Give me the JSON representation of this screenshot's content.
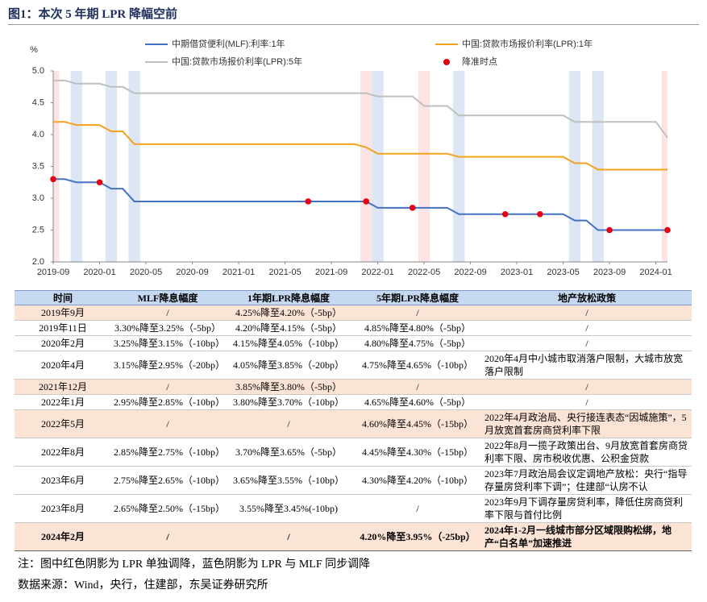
{
  "title": "图1：本次 5 年期 LPR 降幅空前",
  "chart_data": {
    "type": "line",
    "y_label": "%",
    "x": [
      "2019-09",
      "2019-10",
      "2019-11",
      "2019-12",
      "2020-01",
      "2020-02",
      "2020-03",
      "2020-04",
      "2020-05",
      "2020-06",
      "2020-07",
      "2020-08",
      "2020-09",
      "2020-10",
      "2020-11",
      "2020-12",
      "2021-01",
      "2021-02",
      "2021-03",
      "2021-04",
      "2021-05",
      "2021-06",
      "2021-07",
      "2021-08",
      "2021-09",
      "2021-10",
      "2021-11",
      "2021-12",
      "2022-01",
      "2022-02",
      "2022-03",
      "2022-04",
      "2022-05",
      "2022-06",
      "2022-07",
      "2022-08",
      "2022-09",
      "2022-10",
      "2022-11",
      "2022-12",
      "2023-01",
      "2023-02",
      "2023-03",
      "2023-04",
      "2023-05",
      "2023-06",
      "2023-07",
      "2023-08",
      "2023-09",
      "2023-10",
      "2023-11",
      "2023-12",
      "2024-01",
      "2024-02"
    ],
    "series": [
      {
        "name": "中期借贷便利(MLF):利率:1年",
        "color": "#4472c4",
        "values": [
          3.3,
          3.3,
          3.25,
          3.25,
          3.25,
          3.15,
          3.15,
          2.95,
          2.95,
          2.95,
          2.95,
          2.95,
          2.95,
          2.95,
          2.95,
          2.95,
          2.95,
          2.95,
          2.95,
          2.95,
          2.95,
          2.95,
          2.95,
          2.95,
          2.95,
          2.95,
          2.95,
          2.95,
          2.85,
          2.85,
          2.85,
          2.85,
          2.85,
          2.85,
          2.85,
          2.75,
          2.75,
          2.75,
          2.75,
          2.75,
          2.75,
          2.75,
          2.75,
          2.75,
          2.75,
          2.65,
          2.65,
          2.5,
          2.5,
          2.5,
          2.5,
          2.5,
          2.5,
          2.5
        ]
      },
      {
        "name": "中国:贷款市场报价利率(LPR):1年",
        "color": "#f5a31c",
        "values": [
          4.2,
          4.2,
          4.15,
          4.15,
          4.15,
          4.05,
          4.05,
          3.85,
          3.85,
          3.85,
          3.85,
          3.85,
          3.85,
          3.85,
          3.85,
          3.85,
          3.85,
          3.85,
          3.85,
          3.85,
          3.85,
          3.85,
          3.85,
          3.85,
          3.85,
          3.85,
          3.85,
          3.8,
          3.7,
          3.7,
          3.7,
          3.7,
          3.7,
          3.7,
          3.7,
          3.65,
          3.65,
          3.65,
          3.65,
          3.65,
          3.65,
          3.65,
          3.65,
          3.65,
          3.65,
          3.55,
          3.55,
          3.45,
          3.45,
          3.45,
          3.45,
          3.45,
          3.45,
          3.45
        ]
      },
      {
        "name": "中国:贷款市场报价利率(LPR):5年",
        "color": "#bfbfbf",
        "values": [
          4.85,
          4.85,
          4.8,
          4.8,
          4.8,
          4.75,
          4.75,
          4.65,
          4.65,
          4.65,
          4.65,
          4.65,
          4.65,
          4.65,
          4.65,
          4.65,
          4.65,
          4.65,
          4.65,
          4.65,
          4.65,
          4.65,
          4.65,
          4.65,
          4.65,
          4.65,
          4.65,
          4.65,
          4.6,
          4.6,
          4.6,
          4.6,
          4.45,
          4.45,
          4.45,
          4.3,
          4.3,
          4.3,
          4.3,
          4.3,
          4.3,
          4.3,
          4.3,
          4.3,
          4.3,
          4.2,
          4.2,
          4.2,
          4.2,
          4.2,
          4.2,
          4.2,
          4.2,
          3.95
        ]
      }
    ],
    "points": {
      "name": "降准时点",
      "color": "#e60012",
      "x": [
        "2019-09",
        "2020-01",
        "2021-07",
        "2021-12",
        "2022-04",
        "2022-12",
        "2023-03",
        "2023-09",
        "2024-02"
      ],
      "values": [
        3.3,
        3.25,
        2.95,
        2.95,
        2.85,
        2.75,
        2.75,
        2.5,
        2.5
      ]
    },
    "bands": [
      {
        "x": "2019-09",
        "color": "#fce4e4"
      },
      {
        "x": "2019-11",
        "color": "#dce6f4"
      },
      {
        "x": "2020-02",
        "color": "#dce6f4"
      },
      {
        "x": "2020-04",
        "color": "#dce6f4"
      },
      {
        "x": "2021-12",
        "color": "#fce4e4"
      },
      {
        "x": "2022-01",
        "color": "#dce6f4"
      },
      {
        "x": "2022-05",
        "color": "#fce4e4"
      },
      {
        "x": "2022-08",
        "color": "#dce6f4"
      },
      {
        "x": "2023-06",
        "color": "#dce6f4"
      },
      {
        "x": "2023-08",
        "color": "#dce6f4"
      },
      {
        "x": "2024-02",
        "color": "#fce4e4"
      }
    ],
    "xlim": [
      "2019-09",
      "2024-02"
    ],
    "xticks": [
      "2019-09",
      "2020-01",
      "2020-05",
      "2020-09",
      "2021-01",
      "2021-05",
      "2021-09",
      "2022-01",
      "2022-05",
      "2022-09",
      "2023-01",
      "2023-05",
      "2023-09",
      "2024-01"
    ],
    "ylim": [
      2,
      5
    ],
    "yticks": [
      {
        "value": 2,
        "label": "2.0"
      },
      2.5,
      {
        "value": 3,
        "label": "3.0"
      },
      3.5,
      {
        "value": 4,
        "label": "4.0"
      },
      4.5,
      {
        "value": 5,
        "label": "5.0"
      }
    ]
  },
  "table": {
    "header": [
      "时间",
      "MLF降息幅度",
      "1年期LPR降息幅度",
      "5年期LPR降息幅度",
      "地产放松政策"
    ],
    "rows": [
      {
        "highlight": true,
        "cells": [
          "2019年9月",
          "/",
          "4.25%降至4.20%（-5bp）",
          "/",
          "/"
        ]
      },
      {
        "cells": [
          "2019年11日",
          "3.30%降至3.25%（-5bp）",
          "4.20%降至4.15%（-5bp）",
          "4.85%降至4.80%（-5bp）",
          "/"
        ]
      },
      {
        "cells": [
          "2020年2月",
          "3.25%降至3.15%（-10bp）",
          "4.15%降至4.05%（-10bp）",
          "4.80%降至4.75%（-5bp）",
          "/"
        ]
      },
      {
        "cells": [
          "2020年4月",
          "3.15%降至2.95%（-20bp）",
          "4.05%降至3.85%（-20bp）",
          "4.75%降至4.65%（-10bp）",
          "2020年4月中小城市取消落户限制，大城市放宽落户限制"
        ]
      },
      {
        "highlight": true,
        "cells": [
          "2021年12月",
          "/",
          "3.85%降至3.80%（-5bp）",
          "/",
          "/"
        ]
      },
      {
        "cells": [
          "2022年1月",
          "2.95%降至2.85%（-10bp）",
          "3.80%降至3.70%（-10bp）",
          "4.65%降至4.60%（-5bp）",
          "/"
        ]
      },
      {
        "highlight": true,
        "cells": [
          "2022年5月",
          "/",
          "/",
          "4.60%降至4.45%（-15bp）",
          "2022年4月政治局、央行接连表态“因城施策”，5月放宽首套房商贷利率下限"
        ]
      },
      {
        "cells": [
          "2022年8月",
          "2.85%降至2.75%（-10bp）",
          "3.70%降至3.65%（-5bp）",
          "4.45%降至4.30%（-15bp）",
          "2022年8月一揽子政策出台、9月放宽首套房商贷利率下限、房市税收优惠、公积金贷款"
        ]
      },
      {
        "cells": [
          "2023年6月",
          "2.75%降至2.65%（-10bp）",
          "3.65%降至3.55%（-10bp）",
          "4.30%降至4.20%（-10bp）",
          "2023年7月政治局会议定调地产放松：央行“指导存量房贷利率下调”；住建部“认房不认"
        ]
      },
      {
        "cells": [
          "2023年8月",
          "2.65%降至2.50%（-15bp）",
          "3.55%降至3.45%(-10bp)",
          "/",
          "2023年9月下调存量房贷利率，降低住房商贷利率下限与首付比例"
        ]
      },
      {
        "highlight": true,
        "bold": true,
        "cells": [
          "2024年2月",
          "/",
          "/",
          "4.20%降至3.95%（-25bp）",
          "2024年1-2月一线城市部分区域限购松绑，地产“白名单”加速推进"
        ]
      }
    ]
  },
  "notes": [
    "注：图中红色阴影为 LPR 单独调降，蓝色阴影为 LPR 与 MLF 同步调降",
    "数据来源：Wind，央行，住建部，东吴证券研究所"
  ]
}
